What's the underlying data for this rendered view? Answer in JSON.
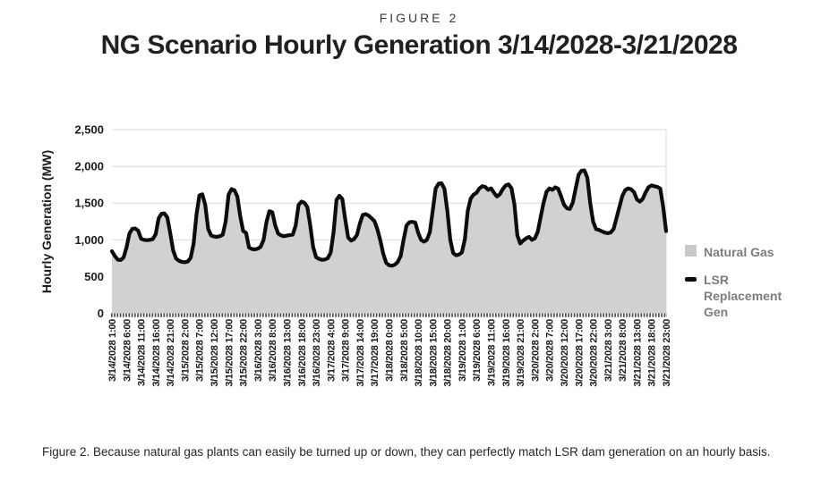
{
  "header": {
    "figure_label": "FIGURE 2",
    "title": "NG Scenario Hourly Generation 3/14/2028-3/21/2028"
  },
  "chart_data": {
    "type": "area",
    "title": "NG Scenario Hourly Generation 3/14/2028-3/21/2028",
    "xlabel": "",
    "ylabel": "Hourly Generation (MW)",
    "ylim": [
      0,
      2500
    ],
    "ytick_values": [
      0,
      500,
      1000,
      1500,
      2000,
      2500
    ],
    "ytick_labels": [
      "0",
      "500",
      "1,000",
      "1,500",
      "2,000",
      "2,500"
    ],
    "grid": "horizontal",
    "legend_position": "right",
    "x_unit": "hourly",
    "x_tick_every_points": 5,
    "x_tick_labels": [
      "3/14/2028 1:00",
      "3/14/2028 6:00",
      "3/14/2028 11:00",
      "3/14/2028 16:00",
      "3/14/2028 21:00",
      "3/15/2028 2:00",
      "3/15/2028 7:00",
      "3/15/2028 12:00",
      "3/15/2028 17:00",
      "3/15/2028 22:00",
      "3/16/2028 3:00",
      "3/16/2028 8:00",
      "3/16/2028 13:00",
      "3/16/2028 18:00",
      "3/16/2028 23:00",
      "3/17/2028 4:00",
      "3/17/2028 9:00",
      "3/17/2028 14:00",
      "3/17/2028 19:00",
      "3/18/2028 0:00",
      "3/18/2028 5:00",
      "3/18/2028 10:00",
      "3/18/2028 15:00",
      "3/18/2028 20:00",
      "3/19/2028 1:00",
      "3/19/2028 6:00",
      "3/19/2028 11:00",
      "3/19/2028 16:00",
      "3/19/2028 21:00",
      "3/20/2028 2:00",
      "3/20/2028 7:00",
      "3/20/2028 12:00",
      "3/20/2028 17:00",
      "3/20/2028 22:00",
      "3/21/2028 3:00",
      "3/21/2028 8:00",
      "3/21/2028 13:00",
      "3/21/2028 18:00",
      "3/21/2028 23:00"
    ],
    "series": [
      {
        "name": "Natural Gas",
        "render": "area",
        "color": "#d2d1d1"
      },
      {
        "name": "LSR Replacement Gen",
        "render": "line",
        "color": "#0c0c0c"
      }
    ],
    "series_values_identical": true,
    "values": [
      845,
      780,
      730,
      725,
      760,
      895,
      1085,
      1150,
      1155,
      1125,
      1015,
      1000,
      995,
      1000,
      1010,
      1075,
      1290,
      1355,
      1360,
      1305,
      1090,
      855,
      745,
      715,
      700,
      695,
      705,
      755,
      945,
      1345,
      1605,
      1620,
      1475,
      1150,
      1060,
      1045,
      1040,
      1050,
      1070,
      1250,
      1615,
      1690,
      1675,
      1590,
      1320,
      1120,
      1095,
      895,
      875,
      870,
      880,
      905,
      1000,
      1245,
      1390,
      1375,
      1195,
      1085,
      1060,
      1050,
      1058,
      1065,
      1070,
      1195,
      1475,
      1520,
      1505,
      1445,
      1195,
      900,
      765,
      740,
      728,
      732,
      750,
      825,
      1105,
      1545,
      1600,
      1555,
      1275,
      1030,
      990,
      1010,
      1065,
      1220,
      1340,
      1350,
      1330,
      1295,
      1255,
      1145,
      995,
      815,
      690,
      655,
      648,
      662,
      700,
      780,
      1000,
      1195,
      1240,
      1245,
      1235,
      1095,
      1000,
      975,
      1000,
      1105,
      1400,
      1700,
      1765,
      1770,
      1695,
      1395,
      1000,
      820,
      790,
      800,
      830,
      1005,
      1395,
      1560,
      1615,
      1640,
      1700,
      1730,
      1720,
      1680,
      1700,
      1640,
      1590,
      1620,
      1690,
      1740,
      1755,
      1700,
      1480,
      1060,
      950,
      990,
      1020,
      1040,
      1000,
      1020,
      1110,
      1310,
      1505,
      1655,
      1700,
      1680,
      1715,
      1695,
      1590,
      1478,
      1430,
      1420,
      1505,
      1700,
      1885,
      1940,
      1945,
      1845,
      1495,
      1245,
      1145,
      1135,
      1115,
      1098,
      1090,
      1100,
      1148,
      1298,
      1448,
      1598,
      1678,
      1700,
      1688,
      1650,
      1550,
      1520,
      1558,
      1648,
      1718,
      1740,
      1730,
      1720,
      1698,
      1448,
      1118
    ]
  },
  "legend": {
    "items": [
      {
        "label": "Natural Gas",
        "swatch": "square",
        "color": "#c9c9c9"
      },
      {
        "label": "LSR Replacement Gen",
        "swatch": "dash",
        "color": "#0c0c0c"
      }
    ]
  },
  "caption": {
    "text": "Figure 2. Because natural gas plants can easily be turned up or down, they can perfectly match LSR dam generation on an hourly basis."
  },
  "colors": {
    "background": "#ffffff",
    "area_fill": "#d2d1d1",
    "line": "#0c0c0c",
    "gridline": "#dbdbdb",
    "axis_text": "#1a1a1a",
    "legend_text": "#7d7d7d",
    "title_text": "#231f20",
    "caption_text": "#262626",
    "hour_ticks": "#4d4d4d"
  }
}
